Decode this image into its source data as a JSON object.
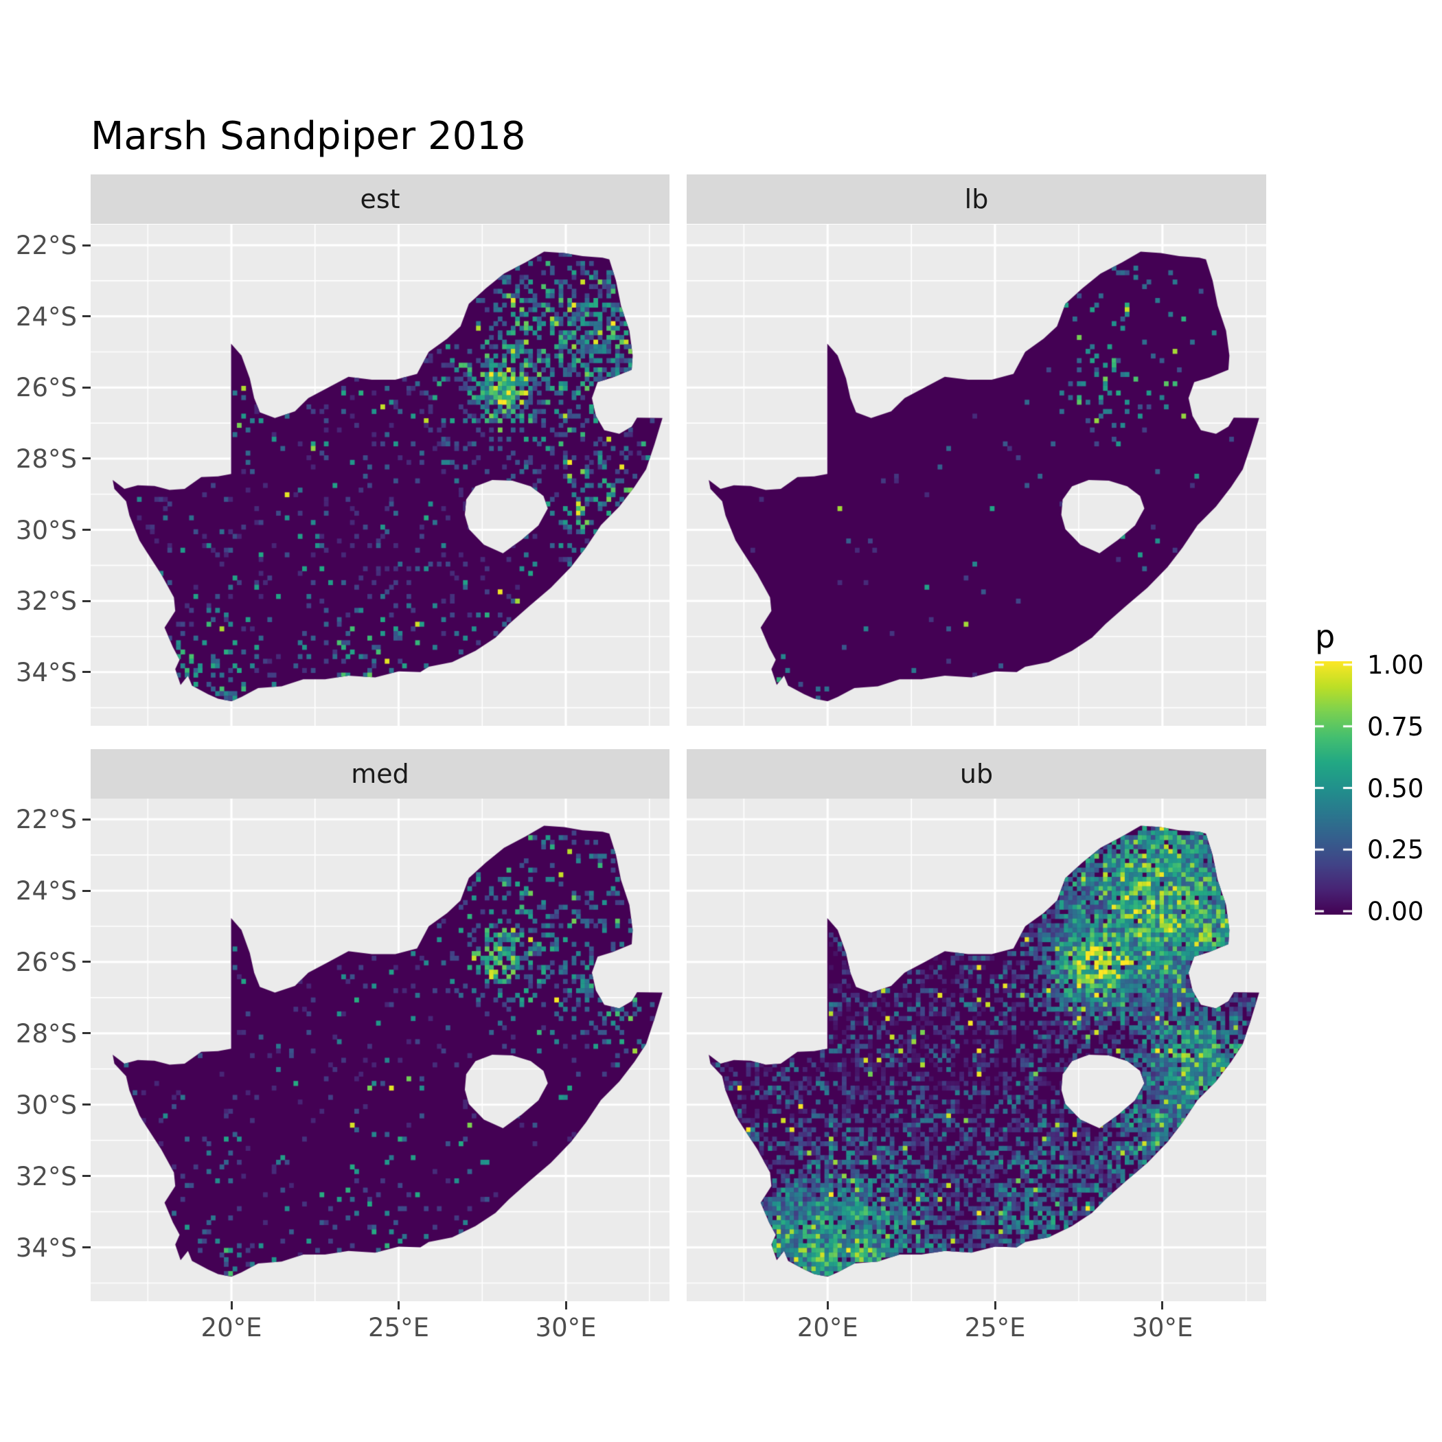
{
  "chart_data": {
    "type": "heatmap",
    "title": "Marsh Sandpiper 2018",
    "facets": [
      "est",
      "lb",
      "med",
      "ub"
    ],
    "legend": {
      "title": "p",
      "limits": [
        0,
        1
      ],
      "ticks": [
        {
          "value": 1.0,
          "label": "1.00"
        },
        {
          "value": 0.75,
          "label": "0.75"
        },
        {
          "value": 0.5,
          "label": "0.50"
        },
        {
          "value": 0.25,
          "label": "0.25"
        },
        {
          "value": 0.0,
          "label": "0.00"
        }
      ]
    },
    "axes": {
      "x": {
        "range": [
          15.79,
          33.1
        ],
        "ticks": [
          {
            "value": 20,
            "label": "20°E"
          },
          {
            "value": 25,
            "label": "25°E"
          },
          {
            "value": 30,
            "label": "30°E"
          }
        ],
        "minor": [
          17.5,
          22.5,
          27.5,
          32.5
        ]
      },
      "y": {
        "range": [
          -21.42,
          -35.51
        ],
        "ticks": [
          {
            "value": -22,
            "label": "22°S"
          },
          {
            "value": -24,
            "label": "24°S"
          },
          {
            "value": -26,
            "label": "26°S"
          },
          {
            "value": -28,
            "label": "28°S"
          },
          {
            "value": -30,
            "label": "30°S"
          },
          {
            "value": -32,
            "label": "32°S"
          },
          {
            "value": -34,
            "label": "34°S"
          }
        ],
        "minor": [
          -23,
          -25,
          -27,
          -29,
          -31,
          -33,
          -35
        ]
      }
    },
    "colors": {
      "panel_bg": "#EBEBEB",
      "strip_bg": "#D9D9D9",
      "grid": "#FFFFFF",
      "axis_text": "#4D4D4D",
      "strip_text": "#1A1A1A",
      "tick_mark": "#333333",
      "map_base": "#440154",
      "viridis": [
        [
          0.0,
          "#440154"
        ],
        [
          0.1,
          "#482475"
        ],
        [
          0.2,
          "#414487"
        ],
        [
          0.3,
          "#355f8d"
        ],
        [
          0.4,
          "#2a788e"
        ],
        [
          0.5,
          "#21918c"
        ],
        [
          0.6,
          "#22a884"
        ],
        [
          0.7,
          "#44bf70"
        ],
        [
          0.8,
          "#7ad151"
        ],
        [
          0.9,
          "#bddf26"
        ],
        [
          1.0,
          "#fde725"
        ]
      ]
    },
    "map": {
      "region": "South Africa",
      "outline": [
        [
          16.45,
          -28.6
        ],
        [
          16.8,
          -28.85
        ],
        [
          17.2,
          -28.75
        ],
        [
          17.7,
          -28.77
        ],
        [
          18.15,
          -28.88
        ],
        [
          18.6,
          -28.85
        ],
        [
          19.1,
          -28.52
        ],
        [
          19.6,
          -28.5
        ],
        [
          19.99,
          -28.43
        ],
        [
          19.99,
          -27.5
        ],
        [
          19.99,
          -26.5
        ],
        [
          19.99,
          -25.6
        ],
        [
          19.99,
          -24.77
        ],
        [
          20.3,
          -25.1
        ],
        [
          20.55,
          -25.75
        ],
        [
          20.68,
          -26.3
        ],
        [
          20.85,
          -26.7
        ],
        [
          21.3,
          -26.86
        ],
        [
          21.9,
          -26.67
        ],
        [
          22.3,
          -26.3
        ],
        [
          22.9,
          -26.0
        ],
        [
          23.5,
          -25.7
        ],
        [
          24.2,
          -25.78
        ],
        [
          24.9,
          -25.78
        ],
        [
          25.55,
          -25.62
        ],
        [
          25.9,
          -25.0
        ],
        [
          26.45,
          -24.63
        ],
        [
          26.85,
          -24.28
        ],
        [
          27.1,
          -23.65
        ],
        [
          27.6,
          -23.22
        ],
        [
          28.15,
          -22.8
        ],
        [
          28.8,
          -22.48
        ],
        [
          29.35,
          -22.18
        ],
        [
          29.95,
          -22.22
        ],
        [
          30.5,
          -22.31
        ],
        [
          31.1,
          -22.35
        ],
        [
          31.3,
          -22.4
        ],
        [
          31.5,
          -23.0
        ],
        [
          31.65,
          -23.7
        ],
        [
          31.9,
          -24.4
        ],
        [
          32.0,
          -25.1
        ],
        [
          31.97,
          -25.5
        ],
        [
          31.4,
          -25.72
        ],
        [
          30.95,
          -25.85
        ],
        [
          30.78,
          -26.3
        ],
        [
          30.9,
          -26.8
        ],
        [
          31.15,
          -27.2
        ],
        [
          31.6,
          -27.3
        ],
        [
          31.97,
          -27.1
        ],
        [
          32.13,
          -26.85
        ],
        [
          32.89,
          -26.86
        ],
        [
          32.65,
          -27.6
        ],
        [
          32.4,
          -28.3
        ],
        [
          32.05,
          -28.8
        ],
        [
          31.6,
          -29.35
        ],
        [
          31.05,
          -29.87
        ],
        [
          30.6,
          -30.5
        ],
        [
          30.15,
          -31.05
        ],
        [
          29.55,
          -31.63
        ],
        [
          28.9,
          -32.15
        ],
        [
          28.3,
          -32.65
        ],
        [
          27.9,
          -33.03
        ],
        [
          27.3,
          -33.4
        ],
        [
          26.6,
          -33.72
        ],
        [
          25.9,
          -33.85
        ],
        [
          25.65,
          -34.0
        ],
        [
          25.0,
          -33.98
        ],
        [
          24.3,
          -34.15
        ],
        [
          23.5,
          -34.1
        ],
        [
          22.8,
          -34.2
        ],
        [
          22.15,
          -34.2
        ],
        [
          21.5,
          -34.4
        ],
        [
          20.8,
          -34.45
        ],
        [
          20.3,
          -34.7
        ],
        [
          20.0,
          -34.82
        ],
        [
          19.6,
          -34.75
        ],
        [
          19.3,
          -34.62
        ],
        [
          18.82,
          -34.38
        ],
        [
          18.7,
          -34.1
        ],
        [
          18.48,
          -34.36
        ],
        [
          18.32,
          -33.92
        ],
        [
          18.45,
          -33.65
        ],
        [
          18.25,
          -33.3
        ],
        [
          18.0,
          -32.75
        ],
        [
          18.32,
          -32.28
        ],
        [
          18.28,
          -31.9
        ],
        [
          17.9,
          -31.25
        ],
        [
          17.45,
          -30.6
        ],
        [
          17.25,
          -30.3
        ],
        [
          16.95,
          -29.6
        ],
        [
          16.85,
          -29.2
        ],
        [
          16.5,
          -28.85
        ]
      ],
      "holes": [
        [
          [
            27.02,
            -29.15
          ],
          [
            27.3,
            -28.78
          ],
          [
            27.8,
            -28.6
          ],
          [
            28.4,
            -28.62
          ],
          [
            28.95,
            -28.78
          ],
          [
            29.33,
            -29.05
          ],
          [
            29.46,
            -29.4
          ],
          [
            29.18,
            -29.88
          ],
          [
            28.68,
            -30.28
          ],
          [
            28.12,
            -30.66
          ],
          [
            27.55,
            -30.42
          ],
          [
            27.1,
            -29.98
          ],
          [
            26.98,
            -29.58
          ]
        ]
      ]
    },
    "speckle_model": {
      "cell_deg": 0.13,
      "facets": [
        {
          "name": "est",
          "seed": 11,
          "base_density": 0.07,
          "val_lo": 0.1,
          "val_hi": 0.62,
          "val_exp": 2.6,
          "outlier_rate": 0.035,
          "hotspots": [
            {
              "lon": 28.05,
              "lat": -26.05,
              "sigma": 0.55,
              "density": 0.85,
              "value": 0.85
            },
            {
              "lon": 29.5,
              "lat": -24.8,
              "sigma": 2.1,
              "density": 0.33,
              "value": 0.3
            },
            {
              "lon": 31.2,
              "lat": -24.3,
              "sigma": 1.0,
              "density": 0.3,
              "value": 0.3
            },
            {
              "lon": 31.1,
              "lat": -29.4,
              "sigma": 1.0,
              "density": 0.25,
              "value": 0.3
            },
            {
              "lon": 19.0,
              "lat": -34.35,
              "sigma": 1.0,
              "density": 0.22,
              "value": 0.35
            },
            {
              "lon": 24.5,
              "lat": -34.1,
              "sigma": 1.6,
              "density": 0.13,
              "value": 0.25
            }
          ]
        },
        {
          "name": "lb",
          "seed": 23,
          "base_density": 0.013,
          "val_lo": 0.12,
          "val_hi": 0.6,
          "val_exp": 2.8,
          "outlier_rate": 0.018,
          "hotspots": [
            {
              "lon": 29.0,
              "lat": -24.8,
              "sigma": 1.9,
              "density": 0.075,
              "value": 0.45
            },
            {
              "lon": 28.05,
              "lat": -26.05,
              "sigma": 0.6,
              "density": 0.1,
              "value": 0.5
            },
            {
              "lon": 19.0,
              "lat": -34.4,
              "sigma": 0.8,
              "density": 0.06,
              "value": 0.4
            }
          ]
        },
        {
          "name": "med",
          "seed": 37,
          "base_density": 0.045,
          "val_lo": 0.1,
          "val_hi": 0.62,
          "val_exp": 2.6,
          "outlier_rate": 0.03,
          "hotspots": [
            {
              "lon": 28.05,
              "lat": -26.0,
              "sigma": 0.6,
              "density": 0.55,
              "value": 0.75
            },
            {
              "lon": 29.6,
              "lat": -24.8,
              "sigma": 1.9,
              "density": 0.2,
              "value": 0.3
            },
            {
              "lon": 31.3,
              "lat": -27.2,
              "sigma": 0.9,
              "density": 0.18,
              "value": 0.3
            },
            {
              "lon": 19.1,
              "lat": -34.4,
              "sigma": 0.9,
              "density": 0.13,
              "value": 0.35
            },
            {
              "lon": 24.5,
              "lat": -34.15,
              "sigma": 1.4,
              "density": 0.09,
              "value": 0.25
            }
          ]
        },
        {
          "name": "ub",
          "seed": 51,
          "base_density": 0.42,
          "val_lo": 0.05,
          "val_hi": 0.45,
          "val_exp": 2.2,
          "outlier_rate": 0.03,
          "hotspots": [
            {
              "lon": 28.1,
              "lat": -26.0,
              "sigma": 0.9,
              "density": 0.95,
              "value": 1.0
            },
            {
              "lon": 29.9,
              "lat": -24.3,
              "sigma": 1.9,
              "density": 0.7,
              "value": 0.72
            },
            {
              "lon": 31.2,
              "lat": -24.8,
              "sigma": 1.2,
              "density": 0.6,
              "value": 0.7
            },
            {
              "lon": 31.1,
              "lat": -28.9,
              "sigma": 1.2,
              "density": 0.55,
              "value": 0.6
            },
            {
              "lon": 30.0,
              "lat": -31.0,
              "sigma": 1.1,
              "density": 0.4,
              "value": 0.45
            },
            {
              "lon": 20.5,
              "lat": -34.35,
              "sigma": 1.8,
              "density": 0.6,
              "value": 0.65
            },
            {
              "lon": 18.8,
              "lat": -33.8,
              "sigma": 0.9,
              "density": 0.6,
              "value": 0.6
            },
            {
              "lon": 26.5,
              "lat": -33.3,
              "sigma": 1.6,
              "density": 0.25,
              "value": 0.3
            }
          ]
        }
      ]
    }
  }
}
